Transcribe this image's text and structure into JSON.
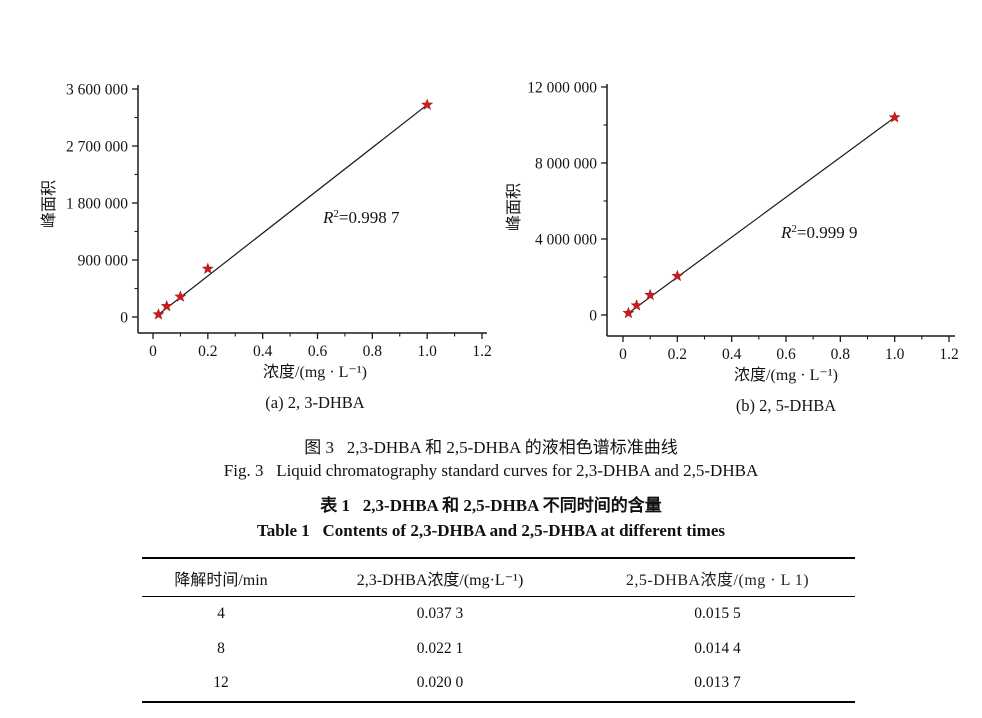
{
  "captions": {
    "figure_zh": "图 3   2,3-DHBA 和 2,5-DHBA 的液相色谱标准曲线",
    "figure_en": "Fig. 3   Liquid chromatography standard curves for 2,3-DHBA and 2,5-DHBA",
    "table_zh": "表 1   2,3-DHBA 和 2,5-DHBA 不同时间的含量",
    "table_en": "Table 1   Contents of 2,3-DHBA and 2,5-DHBA at different times"
  },
  "chart_data": [
    {
      "name": "chart-a",
      "type": "scatter",
      "caption": "(a) 2, 3-DHBA",
      "x": [
        0.02,
        0.05,
        0.1,
        0.2,
        1.0
      ],
      "y": [
        40000,
        170000,
        320000,
        760000,
        3350000
      ],
      "fit": "linear-through-endpoints",
      "r2": {
        "symbol": "R",
        "sup": "2",
        "rest": "=0.998 7"
      },
      "xlabel": "浓度/(mg · L⁻¹)",
      "ylabel": "峰面积",
      "xlim": [
        0,
        1.2
      ],
      "ylim": [
        0,
        3600000
      ],
      "xticks": [
        0,
        0.2,
        0.4,
        0.6,
        0.8,
        1.0,
        1.2
      ],
      "xtick_labels": [
        "0",
        "0.2",
        "0.4",
        "0.6",
        "0.8",
        "1.0",
        "1.2"
      ],
      "x_minor_ticks": [
        0.1,
        0.3,
        0.5,
        0.7,
        0.9,
        1.1
      ],
      "yticks": [
        0,
        900000,
        1800000,
        2700000,
        3600000
      ],
      "ytick_labels": [
        "0",
        "900 000",
        "1 800 000",
        "2 700 000",
        "3 600 000"
      ],
      "y_minor_ticks": [
        450000,
        1350000,
        2250000,
        3150000
      ],
      "marker": "star",
      "marker_color": "#cc1b1b",
      "line_color": "#1a1a1a",
      "grid": false,
      "legend": "none"
    },
    {
      "name": "chart-b",
      "type": "scatter",
      "caption": "(b) 2, 5-DHBA",
      "x": [
        0.02,
        0.05,
        0.1,
        0.2,
        1.0
      ],
      "y": [
        100000,
        500000,
        1050000,
        2050000,
        10400000
      ],
      "fit": "linear-through-endpoints",
      "r2": {
        "symbol": "R",
        "sup": "2",
        "rest": "=0.999 9"
      },
      "xlabel": "浓度/(mg · L⁻¹)",
      "ylabel": "峰面积",
      "xlim": [
        0,
        1.2
      ],
      "ylim": [
        0,
        12000000
      ],
      "xticks": [
        0,
        0.2,
        0.4,
        0.6,
        0.8,
        1.0,
        1.2
      ],
      "xtick_labels": [
        "0",
        "0.2",
        "0.4",
        "0.6",
        "0.8",
        "1.0",
        "1.2"
      ],
      "x_minor_ticks": [
        0.1,
        0.3,
        0.5,
        0.7,
        0.9,
        1.1
      ],
      "yticks": [
        0,
        4000000,
        8000000,
        12000000
      ],
      "ytick_labels": [
        "0",
        "4 000 000",
        "8 000 000",
        "12 000 000"
      ],
      "y_minor_ticks": [
        2000000,
        6000000,
        10000000
      ],
      "marker": "star",
      "marker_color": "#cc1b1b",
      "line_color": "#1a1a1a",
      "grid": false,
      "legend": "none"
    }
  ],
  "table": {
    "columns": [
      "降解时间/min",
      "2,3-DHBA浓度/(mg·L⁻¹)",
      "2,5-DHBA浓度/(mg · L 1)"
    ],
    "rows": [
      [
        "4",
        "0.037 3",
        "0.015 5"
      ],
      [
        "8",
        "0.022 1",
        "0.014 4"
      ],
      [
        "12",
        "0.020 0",
        "0.013 7"
      ]
    ]
  }
}
